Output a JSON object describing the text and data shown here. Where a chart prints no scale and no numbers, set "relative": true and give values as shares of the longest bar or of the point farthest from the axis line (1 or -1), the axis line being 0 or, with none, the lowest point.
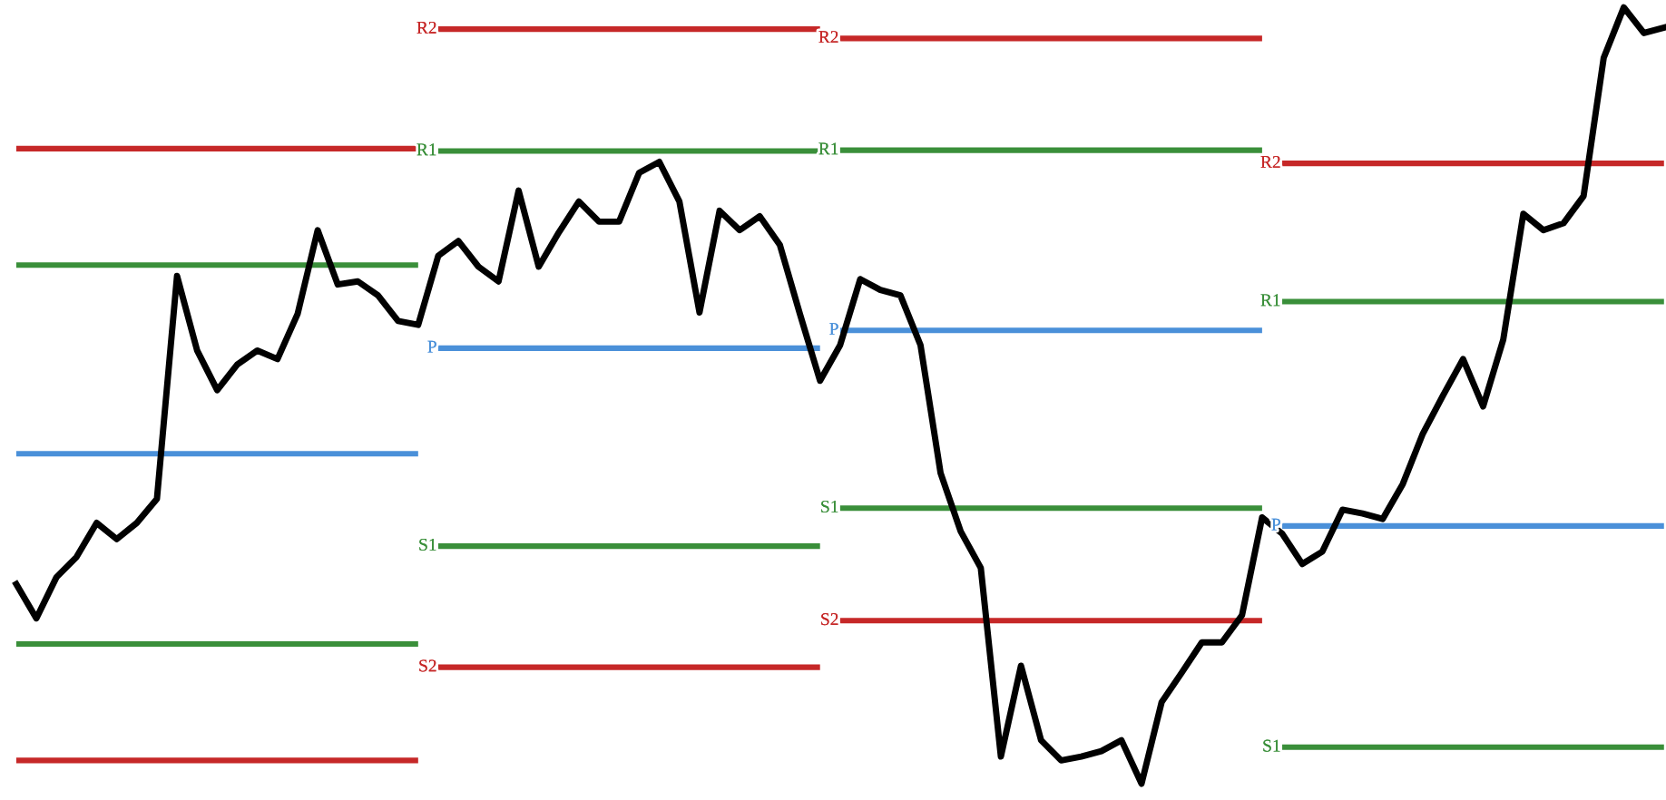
{
  "chart_data": {
    "type": "line",
    "relative": true,
    "categories": [
      null,
      null,
      null,
      null,
      null,
      null,
      null,
      null,
      null,
      null,
      null,
      null,
      null,
      null,
      null,
      null,
      null,
      null,
      null,
      null,
      null,
      null,
      null,
      null,
      null,
      null,
      null,
      null,
      null,
      null,
      null,
      null,
      null,
      null,
      null,
      null,
      null,
      null,
      null,
      null,
      null,
      null,
      null,
      null,
      null,
      null,
      null,
      null,
      null,
      null,
      null,
      null,
      null,
      null,
      null,
      null,
      null,
      null,
      null,
      null,
      null,
      null,
      null,
      null,
      null,
      null,
      null,
      null,
      null,
      null,
      null,
      null,
      null,
      null,
      null,
      null,
      null,
      null,
      null,
      null,
      null,
      null,
      null
    ],
    "series": [
      {
        "color": "#000000",
        "values": [
          0.257,
          0.213,
          0.266,
          0.292,
          0.336,
          0.315,
          0.336,
          0.367,
          0.654,
          0.558,
          0.507,
          0.54,
          0.558,
          0.547,
          0.605,
          0.713,
          0.643,
          0.647,
          0.629,
          0.596,
          0.591,
          0.68,
          0.699,
          0.666,
          0.647,
          0.764,
          0.666,
          0.71,
          0.75,
          0.724,
          0.724,
          0.787,
          0.801,
          0.75,
          0.607,
          0.738,
          0.713,
          0.731,
          0.694,
          0.605,
          0.519,
          0.565,
          0.65,
          0.636,
          0.629,
          0.565,
          0.4,
          0.325,
          0.278,
          0.035,
          0.152,
          0.056,
          0.03,
          0.035,
          0.042,
          0.056,
          0,
          0.105,
          0.143,
          0.182,
          0.182,
          0.217,
          0.343,
          0.322,
          0.283,
          0.299,
          0.353,
          0.348,
          0.341,
          0.386,
          0.451,
          0.5,
          0.547,
          0.486,
          0.572,
          0.734,
          0.713,
          0.722,
          0.757,
          0.935,
          1,
          0.967,
          0.974
        ]
      },
      {
        "name": "R2",
        "type": "step",
        "color": "#c62828",
        "values": [
          0.818,
          0.818,
          0.818,
          0.818,
          0.818,
          0.818,
          0.818,
          0.818,
          0.818,
          0.818,
          0.818,
          0.818,
          0.818,
          0.818,
          0.818,
          0.818,
          0.818,
          0.818,
          0.818,
          0.818,
          0.818,
          0.972,
          0.972,
          0.972,
          0.972,
          0.972,
          0.972,
          0.972,
          0.972,
          0.972,
          0.972,
          0.972,
          0.972,
          0.972,
          0.972,
          0.972,
          0.972,
          0.972,
          0.972,
          0.972,
          0.972,
          0.96,
          0.96,
          0.96,
          0.96,
          0.96,
          0.96,
          0.96,
          0.96,
          0.96,
          0.96,
          0.96,
          0.96,
          0.96,
          0.96,
          0.96,
          0.96,
          0.96,
          0.96,
          0.96,
          0.96,
          0.96,
          0.96,
          0.799,
          0.799,
          0.799,
          0.799,
          0.799,
          0.799,
          0.799,
          0.799,
          0.799,
          0.799,
          0.799,
          0.799,
          0.799,
          0.799,
          0.799,
          0.799,
          0.799,
          0.799,
          0.799,
          0.799
        ]
      },
      {
        "name": "R1",
        "type": "step",
        "color": "#3a8f3a",
        "values": [
          0.668,
          0.668,
          0.668,
          0.668,
          0.668,
          0.668,
          0.668,
          0.668,
          0.668,
          0.668,
          0.668,
          0.668,
          0.668,
          0.668,
          0.668,
          0.668,
          0.668,
          0.668,
          0.668,
          0.668,
          0.668,
          0.815,
          0.815,
          0.815,
          0.815,
          0.815,
          0.815,
          0.815,
          0.815,
          0.815,
          0.815,
          0.815,
          0.815,
          0.815,
          0.815,
          0.815,
          0.815,
          0.815,
          0.815,
          0.815,
          0.815,
          0.816,
          0.816,
          0.816,
          0.816,
          0.816,
          0.816,
          0.816,
          0.816,
          0.816,
          0.816,
          0.816,
          0.816,
          0.816,
          0.816,
          0.816,
          0.816,
          0.816,
          0.816,
          0.816,
          0.816,
          0.816,
          0.816,
          0.621,
          0.621,
          0.621,
          0.621,
          0.621,
          0.621,
          0.621,
          0.621,
          0.621,
          0.621,
          0.621,
          0.621,
          0.621,
          0.621,
          0.621,
          0.621,
          0.621,
          0.621,
          0.621,
          0.621
        ]
      },
      {
        "name": "P",
        "type": "step",
        "color": "#4a90d9",
        "values": [
          0.425,
          0.425,
          0.425,
          0.425,
          0.425,
          0.425,
          0.425,
          0.425,
          0.425,
          0.425,
          0.425,
          0.425,
          0.425,
          0.425,
          0.425,
          0.425,
          0.425,
          0.425,
          0.425,
          0.425,
          0.425,
          0.561,
          0.561,
          0.561,
          0.561,
          0.561,
          0.561,
          0.561,
          0.561,
          0.561,
          0.561,
          0.561,
          0.561,
          0.561,
          0.561,
          0.561,
          0.561,
          0.561,
          0.561,
          0.561,
          0.561,
          0.584,
          0.584,
          0.584,
          0.584,
          0.584,
          0.584,
          0.584,
          0.584,
          0.584,
          0.584,
          0.584,
          0.584,
          0.584,
          0.584,
          0.584,
          0.584,
          0.584,
          0.584,
          0.584,
          0.584,
          0.584,
          0.584,
          0.332,
          0.332,
          0.332,
          0.332,
          0.332,
          0.332,
          0.332,
          0.332,
          0.332,
          0.332,
          0.332,
          0.332,
          0.332,
          0.332,
          0.332,
          0.332,
          0.332,
          0.332,
          0.332,
          0.332
        ]
      },
      {
        "name": "S1",
        "type": "step",
        "color": "#3a8f3a",
        "values": [
          0.18,
          0.18,
          0.18,
          0.18,
          0.18,
          0.18,
          0.18,
          0.18,
          0.18,
          0.18,
          0.18,
          0.18,
          0.18,
          0.18,
          0.18,
          0.18,
          0.18,
          0.18,
          0.18,
          0.18,
          0.18,
          0.306,
          0.306,
          0.306,
          0.306,
          0.306,
          0.306,
          0.306,
          0.306,
          0.306,
          0.306,
          0.306,
          0.306,
          0.306,
          0.306,
          0.306,
          0.306,
          0.306,
          0.306,
          0.306,
          0.306,
          0.355,
          0.355,
          0.355,
          0.355,
          0.355,
          0.355,
          0.355,
          0.355,
          0.355,
          0.355,
          0.355,
          0.355,
          0.355,
          0.355,
          0.355,
          0.355,
          0.355,
          0.355,
          0.355,
          0.355,
          0.355,
          0.355,
          0.047,
          0.047,
          0.047,
          0.047,
          0.047,
          0.047,
          0.047,
          0.047,
          0.047,
          0.047,
          0.047,
          0.047,
          0.047,
          0.047,
          0.047,
          0.047,
          0.047,
          0.047,
          0.047,
          0.047
        ]
      },
      {
        "name": "S2",
        "type": "step",
        "color": "#c62828",
        "values": [
          0.03,
          0.03,
          0.03,
          0.03,
          0.03,
          0.03,
          0.03,
          0.03,
          0.03,
          0.03,
          0.03,
          0.03,
          0.03,
          0.03,
          0.03,
          0.03,
          0.03,
          0.03,
          0.03,
          0.03,
          0.03,
          0.15,
          0.15,
          0.15,
          0.15,
          0.15,
          0.15,
          0.15,
          0.15,
          0.15,
          0.15,
          0.15,
          0.15,
          0.15,
          0.15,
          0.15,
          0.15,
          0.15,
          0.15,
          0.15,
          0.15,
          0.21,
          0.21,
          0.21,
          0.21,
          0.21,
          0.21,
          0.21,
          0.21,
          0.21,
          0.21,
          0.21,
          0.21,
          0.21,
          0.21,
          0.21,
          0.21,
          0.21,
          0.21,
          0.21,
          0.21,
          0.21,
          0.21,
          null,
          null,
          null,
          null,
          null,
          null,
          null,
          null,
          null,
          null,
          null,
          null,
          null,
          null,
          null,
          null,
          null,
          null,
          null,
          null
        ]
      }
    ]
  }
}
